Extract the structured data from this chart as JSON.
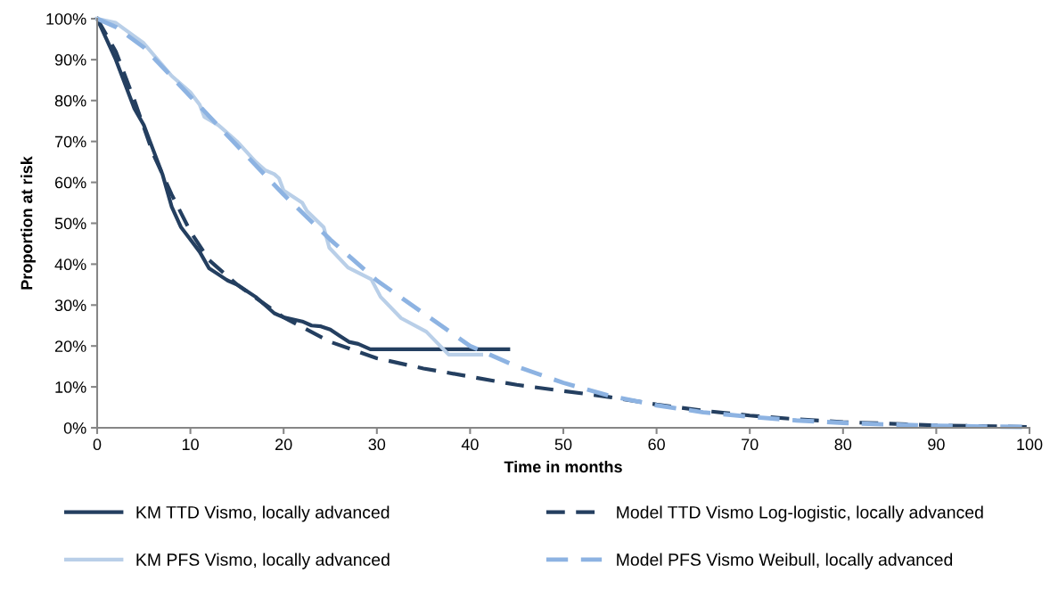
{
  "chart_data": {
    "type": "line",
    "xlabel": "Time in months",
    "ylabel": "Proportion at risk",
    "xlim": [
      0,
      100
    ],
    "xticks": [
      0,
      10,
      20,
      30,
      40,
      50,
      60,
      70,
      80,
      90,
      100
    ],
    "ylim": [
      0,
      100
    ],
    "yticks": [
      {
        "value": 0,
        "label": "0%"
      },
      {
        "value": 10,
        "label": "10%"
      },
      {
        "value": 20,
        "label": "20%"
      },
      {
        "value": 30,
        "label": "30%"
      },
      {
        "value": 40,
        "label": "40%"
      },
      {
        "value": 50,
        "label": "50%"
      },
      {
        "value": 60,
        "label": "60%"
      },
      {
        "value": 70,
        "label": "70%"
      },
      {
        "value": 80,
        "label": "80%"
      },
      {
        "value": 90,
        "label": "90%"
      },
      {
        "value": 100,
        "label": "100%"
      }
    ],
    "grid": false,
    "legend": "bottom",
    "marker": "none",
    "series": [
      {
        "name": "KM TTD Vismo, locally advanced",
        "color": "#243f60",
        "line_style": "solid",
        "x": [
          0,
          1,
          2,
          3,
          4,
          5,
          6,
          7,
          8,
          9,
          10,
          11,
          12,
          13,
          14,
          15,
          16,
          17,
          18,
          19,
          20,
          22,
          23,
          24,
          25,
          26,
          27,
          28,
          29.3,
          44.1
        ],
        "values": [
          100,
          95,
          90,
          84,
          78,
          74,
          68,
          62,
          54,
          49,
          46,
          43,
          39,
          37.5,
          36,
          35,
          33.5,
          32,
          30,
          28,
          27,
          26,
          25,
          24.8,
          24,
          22.5,
          21,
          20.5,
          19.2,
          19.2
        ]
      },
      {
        "name": "Model TTD Vismo Log-logistic, locally advanced",
        "color": "#243f60",
        "line_style": "dashed",
        "x": [
          0,
          2,
          4,
          6,
          8,
          10,
          12,
          15,
          20,
          25,
          30,
          35,
          40,
          45,
          50,
          55,
          60,
          65,
          70,
          75,
          80,
          85,
          90,
          95,
          100
        ],
        "values": [
          100,
          92,
          80,
          67,
          57,
          48,
          41,
          35,
          27,
          21,
          17,
          14.5,
          12.5,
          10.5,
          9,
          7.5,
          5.7,
          4.2,
          3,
          2.1,
          1.4,
          1,
          0.6,
          0.4,
          0.2
        ]
      },
      {
        "name": "KM PFS Vismo, locally advanced",
        "color": "#b9cfe8",
        "line_style": "solid",
        "x": [
          0,
          2,
          5,
          8,
          10,
          11,
          11.5,
          13,
          15,
          17,
          18,
          19,
          19.5,
          20,
          22,
          22.5,
          24.3,
          24.9,
          26.9,
          29.4,
          30.4,
          32.6,
          35.3,
          37.7,
          41.2
        ],
        "values": [
          100,
          99,
          94,
          86,
          82,
          79,
          76,
          74,
          70,
          65,
          63,
          62,
          61,
          58,
          55,
          53,
          49,
          44,
          39.2,
          36.3,
          32,
          26.8,
          23.5,
          17.9,
          17.9
        ]
      },
      {
        "name": "Model PFS Vismo Weibull, locally advanced",
        "color": "#8db3e2",
        "line_style": "dashed",
        "x": [
          0,
          2,
          5,
          10,
          15,
          20,
          25,
          30,
          35,
          40,
          45,
          50,
          55,
          60,
          65,
          70,
          75,
          80,
          85,
          90,
          95,
          100
        ],
        "values": [
          100,
          98,
          93,
          81,
          69,
          57,
          46,
          36,
          28,
          20,
          15,
          11,
          7.8,
          5.5,
          3.8,
          2.7,
          1.8,
          1.2,
          0.8,
          0.5,
          0.3,
          0.2
        ]
      }
    ]
  }
}
